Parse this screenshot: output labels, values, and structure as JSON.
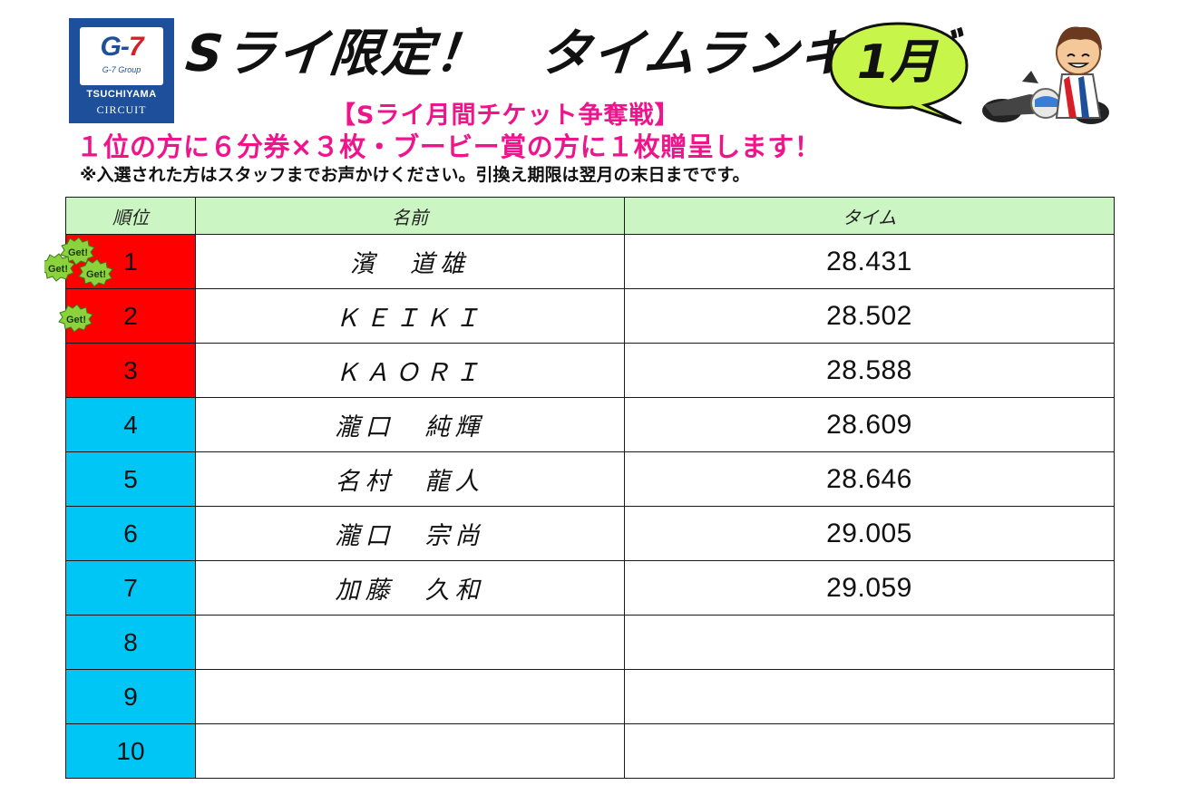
{
  "logo": {
    "mark_g": "G",
    "mark_dash": "-",
    "mark_seven": "7",
    "group": "G-7 Group",
    "name": "TSUCHIYAMA",
    "sub": "CIRCUIT"
  },
  "title": "Sライ限定！　タイムランキング",
  "month": "1月",
  "subtitle": "【Sライ月間チケット争奪戦】",
  "prize": "１位の方に６分券×３枚・ブービー賞の方に１枚贈呈します！",
  "notice": "※入選された方はスタッフまでお声かけください。引換え期限は翌月の末日までです。",
  "badge_text": "Get!",
  "table": {
    "headers": {
      "rank": "順位",
      "name": "名前",
      "time": "タイム"
    },
    "rows": [
      {
        "rank": "1",
        "name": "濱　道雄",
        "time": "28.431"
      },
      {
        "rank": "2",
        "name": "ＫＥＩＫＩ",
        "time": "28.502"
      },
      {
        "rank": "3",
        "name": "ＫＡＯＲＩ",
        "time": "28.588"
      },
      {
        "rank": "4",
        "name": "瀧口　純輝",
        "time": "28.609"
      },
      {
        "rank": "5",
        "name": "名村　龍人",
        "time": "28.646"
      },
      {
        "rank": "6",
        "name": "瀧口　宗尚",
        "time": "29.005"
      },
      {
        "rank": "7",
        "name": "加藤　久和",
        "time": "29.059"
      },
      {
        "rank": "8",
        "name": "",
        "time": ""
      },
      {
        "rank": "9",
        "name": "",
        "time": ""
      },
      {
        "rank": "10",
        "name": "",
        "time": ""
      }
    ]
  },
  "colors": {
    "top_rank_bg": "#ff0000",
    "other_rank_bg": "#00c6f5",
    "header_bg": "#ccf5c4",
    "accent_pink": "#f0148c",
    "logo_blue": "#1e4f9a",
    "bubble_fill": "#c8f54a",
    "badge_fill": "#8cd23c"
  }
}
